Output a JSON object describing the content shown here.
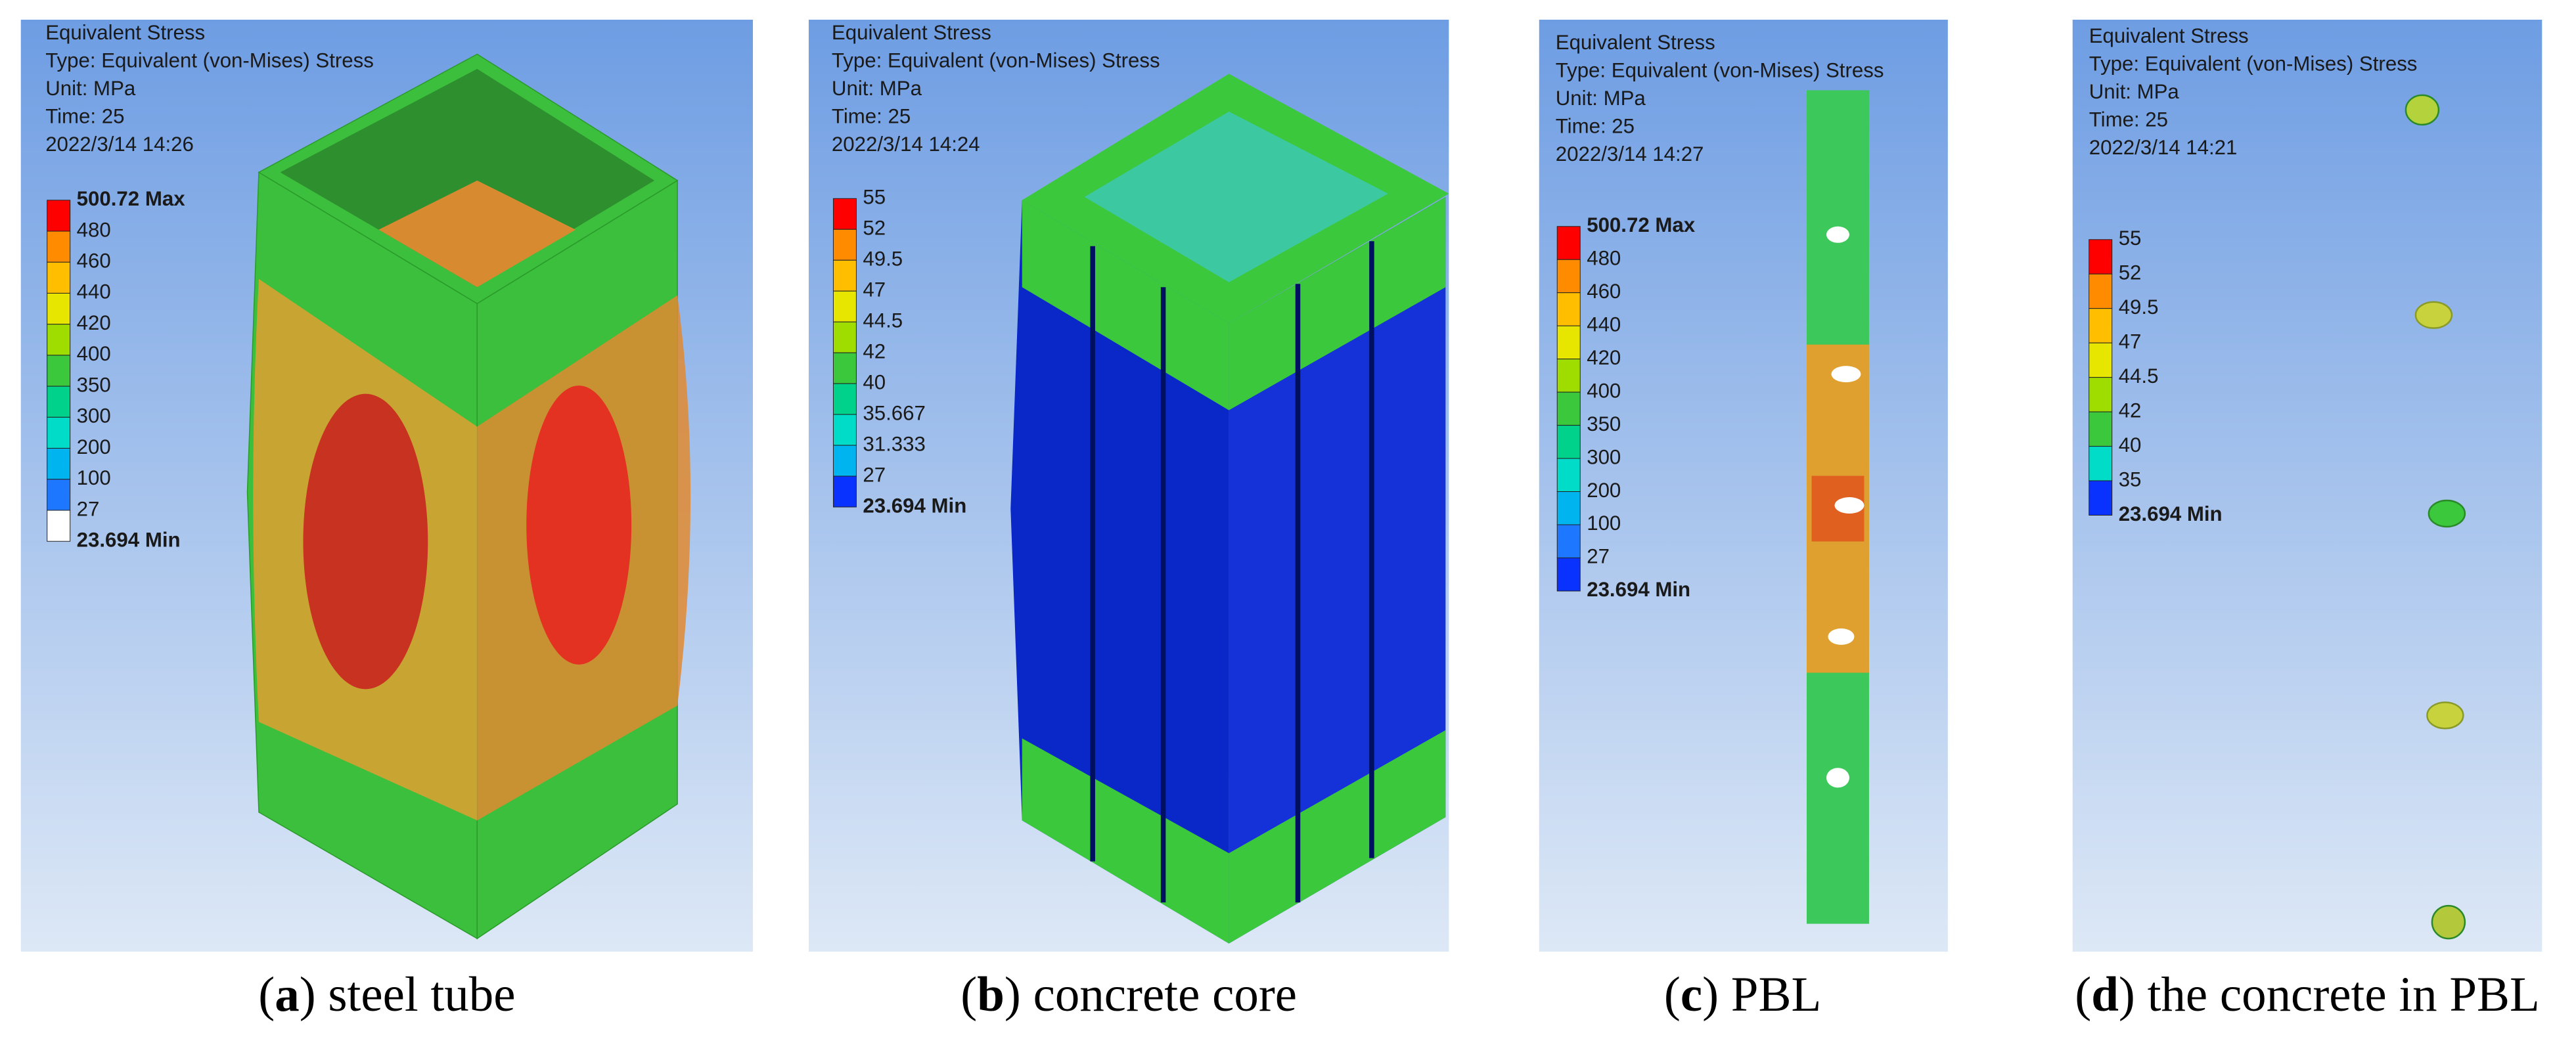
{
  "panels": [
    {
      "header": [
        "Equivalent Stress",
        "Type: Equivalent (von-Mises) Stress",
        "Unit: MPa",
        "Time: 25",
        "2022/3/14 14:26"
      ],
      "legend": {
        "labels": [
          "500.72 Max",
          "480",
          "460",
          "440",
          "420",
          "400",
          "350",
          "300",
          "200",
          "100",
          "27",
          "23.694 Min"
        ],
        "colors": [
          "#ff0000",
          "#ff8c00",
          "#ffbf00",
          "#e6e600",
          "#9fdc00",
          "#3cc83c",
          "#00d28c",
          "#00dcc8",
          "#00b4f0",
          "#1e78ff",
          "#ffffff"
        ]
      },
      "caption": {
        "open": "(",
        "letter": "a",
        "rest": ") steel tube"
      }
    },
    {
      "header": [
        "Equivalent Stress",
        "Type: Equivalent (von-Mises) Stress",
        "Unit: MPa",
        "Time: 25",
        "2022/3/14 14:24"
      ],
      "legend": {
        "labels": [
          "55",
          "52",
          "49.5",
          "47",
          "44.5",
          "42",
          "40",
          "35.667",
          "31.333",
          "27",
          "23.694 Min"
        ],
        "colors": [
          "#ff0000",
          "#ff8c00",
          "#ffbf00",
          "#e6e600",
          "#9fdc00",
          "#3cc83c",
          "#00d28c",
          "#00dcc8",
          "#00b4f0",
          "#0a32ff"
        ]
      },
      "caption": {
        "open": "(",
        "letter": "b",
        "rest": ") concrete core"
      }
    },
    {
      "header": [
        "Equivalent Stress",
        "Type: Equivalent (von-Mises) Stress",
        "Unit: MPa",
        "Time: 25",
        "2022/3/14 14:27"
      ],
      "legend": {
        "labels": [
          "500.72 Max",
          "480",
          "460",
          "440",
          "420",
          "400",
          "350",
          "300",
          "200",
          "100",
          "27",
          "23.694 Min"
        ],
        "colors": [
          "#ff0000",
          "#ff8c00",
          "#ffbf00",
          "#e6e600",
          "#9fdc00",
          "#3cc83c",
          "#00d28c",
          "#00dcc8",
          "#00b4f0",
          "#1e78ff",
          "#0a32ff"
        ]
      },
      "caption": {
        "open": "(",
        "letter": "c",
        "rest": ") PBL"
      }
    },
    {
      "header": [
        "Equivalent Stress",
        "Type: Equivalent (von-Mises) Stress",
        "Unit: MPa",
        "Time: 25",
        "2022/3/14 14:21"
      ],
      "legend": {
        "labels": [
          "55",
          "52",
          "49.5",
          "47",
          "44.5",
          "42",
          "40",
          "35",
          "23.694 Min"
        ],
        "colors": [
          "#ff0000",
          "#ff8c00",
          "#ffbf00",
          "#e6e600",
          "#9fdc00",
          "#3cc83c",
          "#00dcc8",
          "#0a32ff"
        ]
      },
      "caption": {
        "open": "(",
        "letter": "d",
        "rest": ") the concrete in PBL"
      }
    }
  ]
}
